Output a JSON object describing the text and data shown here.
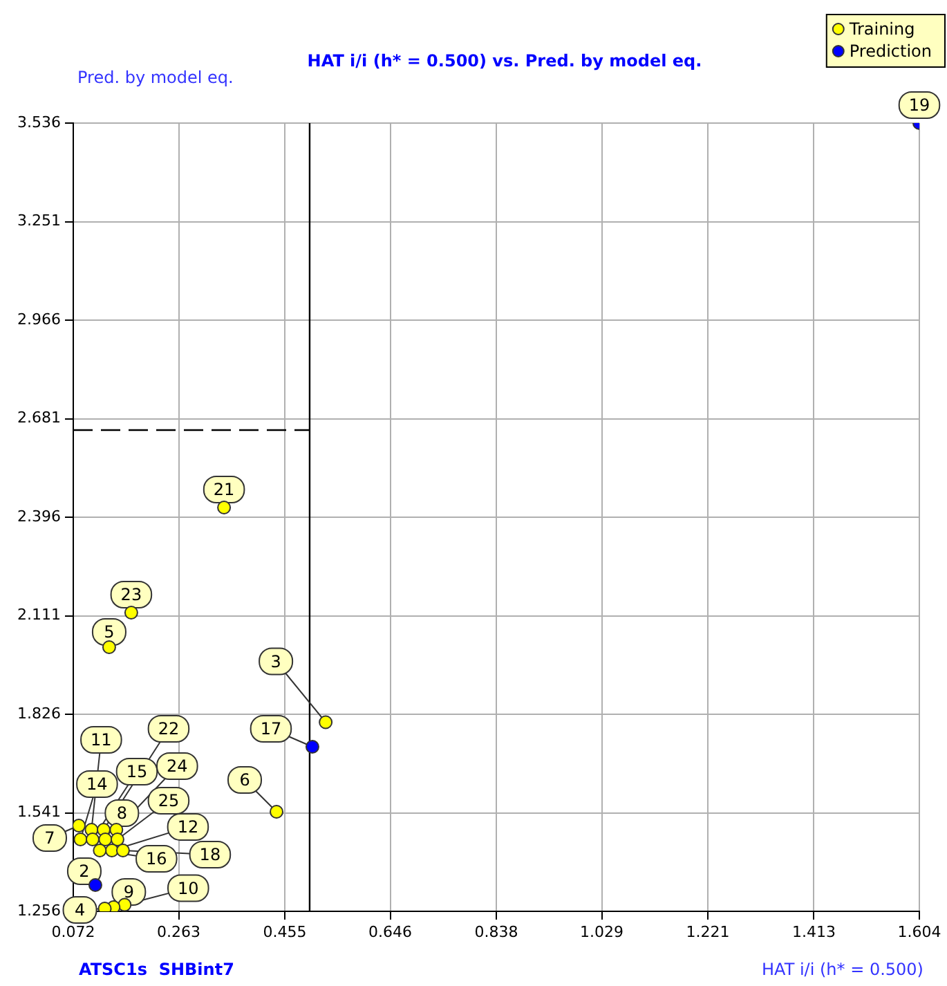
{
  "chart_data": {
    "type": "scatter",
    "title": "HAT i/i (h* = 0.500) vs. Pred. by model eq.",
    "xlabel": "HAT i/i (h* = 0.500)",
    "ylabel": "Pred. by model eq.",
    "xlim": [
      0.072,
      1.604
    ],
    "xticks": [
      0.072,
      0.263,
      0.455,
      0.646,
      0.838,
      1.029,
      1.221,
      1.413,
      1.604
    ],
    "ylim": [
      1.256,
      3.536
    ],
    "yticks": [
      1.256,
      1.541,
      1.826,
      2.111,
      2.396,
      2.681,
      2.966,
      3.251,
      3.536
    ],
    "grid": true,
    "legend": "top right",
    "marker": "circle",
    "series": [
      {
        "name": "Training",
        "color": "#ffff00",
        "x": [
          0.345,
          0.177,
          0.137,
          0.529,
          0.44,
          0.082,
          0.105,
          0.085,
          0.127,
          0.107,
          0.15,
          0.13,
          0.152,
          0.142,
          0.12,
          0.162,
          0.165,
          0.145,
          0.129
        ],
        "values": [
          2.424,
          2.12,
          2.02,
          1.803,
          1.544,
          1.504,
          1.492,
          1.464,
          1.492,
          1.464,
          1.492,
          1.464,
          1.464,
          1.432,
          1.432,
          1.432,
          1.275,
          1.268,
          1.264
        ]
      },
      {
        "name": "Prediction",
        "color": "#0000ff",
        "x": [
          1.604,
          0.505,
          0.112
        ],
        "values": [
          3.536,
          1.732,
          1.332
        ]
      },
      {
        "type": "line",
        "color": "#000000",
        "line_style": "dashed",
        "marker": "none",
        "x": [
          0.072,
          0.5
        ],
        "values": [
          2.648,
          2.648
        ]
      }
    ],
    "ref_lines": [
      {
        "axis": "x",
        "value": 0.5,
        "color": "#000000",
        "line_style": "solid"
      }
    ],
    "annotations": [
      "ATSC1s  SHBint7",
      {
        "text": "19",
        "x": 1.604,
        "y": 3.536
      },
      {
        "text": "21",
        "x": 0.345,
        "y": 2.424
      },
      {
        "text": "23",
        "x": 0.177,
        "y": 2.12
      },
      {
        "text": "5",
        "x": 0.137,
        "y": 2.02
      },
      {
        "text": "3",
        "x": 0.529,
        "y": 1.803
      },
      {
        "text": "17",
        "x": 0.505,
        "y": 1.732
      },
      {
        "text": "6",
        "x": 0.44,
        "y": 1.544
      },
      {
        "text": "7",
        "x": 0.082,
        "y": 1.504
      },
      {
        "text": "11",
        "x": 0.105,
        "y": 1.492
      },
      {
        "text": "14",
        "x": 0.085,
        "y": 1.464
      },
      {
        "text": "22",
        "x": 0.127,
        "y": 1.492
      },
      {
        "text": "15",
        "x": 0.107,
        "y": 1.464
      },
      {
        "text": "24",
        "x": 0.15,
        "y": 1.492
      },
      {
        "text": "8",
        "x": 0.13,
        "y": 1.464
      },
      {
        "text": "25",
        "x": 0.152,
        "y": 1.464
      },
      {
        "text": "12",
        "x": 0.142,
        "y": 1.432
      },
      {
        "text": "16",
        "x": 0.12,
        "y": 1.432
      },
      {
        "text": "18",
        "x": 0.162,
        "y": 1.432
      },
      {
        "text": "2",
        "x": 0.112,
        "y": 1.332
      },
      {
        "text": "10",
        "x": 0.165,
        "y": 1.275
      },
      {
        "text": "9",
        "x": 0.145,
        "y": 1.268
      },
      {
        "text": "4",
        "x": 0.129,
        "y": 1.264
      }
    ]
  }
}
